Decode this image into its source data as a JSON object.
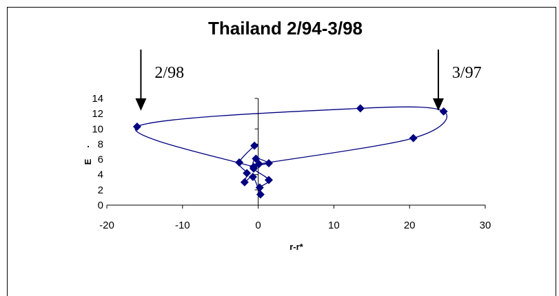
{
  "chart_data": {
    "type": "scatter",
    "title": "Thailand 2/94-3/98",
    "xlabel": "r-r*",
    "ylabel": "E",
    "ylabel_dot": ".",
    "xlim": [
      -20,
      30
    ],
    "ylim": [
      0,
      14
    ],
    "xticks": [
      -20,
      -10,
      0,
      10,
      20,
      30
    ],
    "yticks": [
      0,
      2,
      4,
      6,
      8,
      10,
      12,
      14
    ],
    "grid": false,
    "legend": "none",
    "marker_color": "#000080",
    "line_color": "#000080",
    "connected": true,
    "points": [
      {
        "x": -0.5,
        "y": 7.8
      },
      {
        "x": -2.5,
        "y": 5.6
      },
      {
        "x": -1.5,
        "y": 4.2
      },
      {
        "x": -1.8,
        "y": 3.0
      },
      {
        "x": -0.7,
        "y": 3.7
      },
      {
        "x": 0.3,
        "y": 1.4
      },
      {
        "x": 0.2,
        "y": 2.3
      },
      {
        "x": 1.4,
        "y": 3.3
      },
      {
        "x": -0.6,
        "y": 4.8
      },
      {
        "x": -0.3,
        "y": 6.1
      },
      {
        "x": 1.4,
        "y": 5.5
      },
      {
        "x": 0.1,
        "y": 5.4
      },
      {
        "x": 20.5,
        "y": 8.8
      },
      {
        "x": 24.5,
        "y": 12.3
      },
      {
        "x": 13.5,
        "y": 12.7
      },
      {
        "x": -16,
        "y": 10.3
      },
      {
        "x": -0.6,
        "y": 5.0
      }
    ],
    "annotations": [
      {
        "text": "2/98",
        "x": -15.5,
        "y": 12.2
      },
      {
        "text": "3/97",
        "x": 23.8,
        "y": 12.2
      }
    ]
  }
}
